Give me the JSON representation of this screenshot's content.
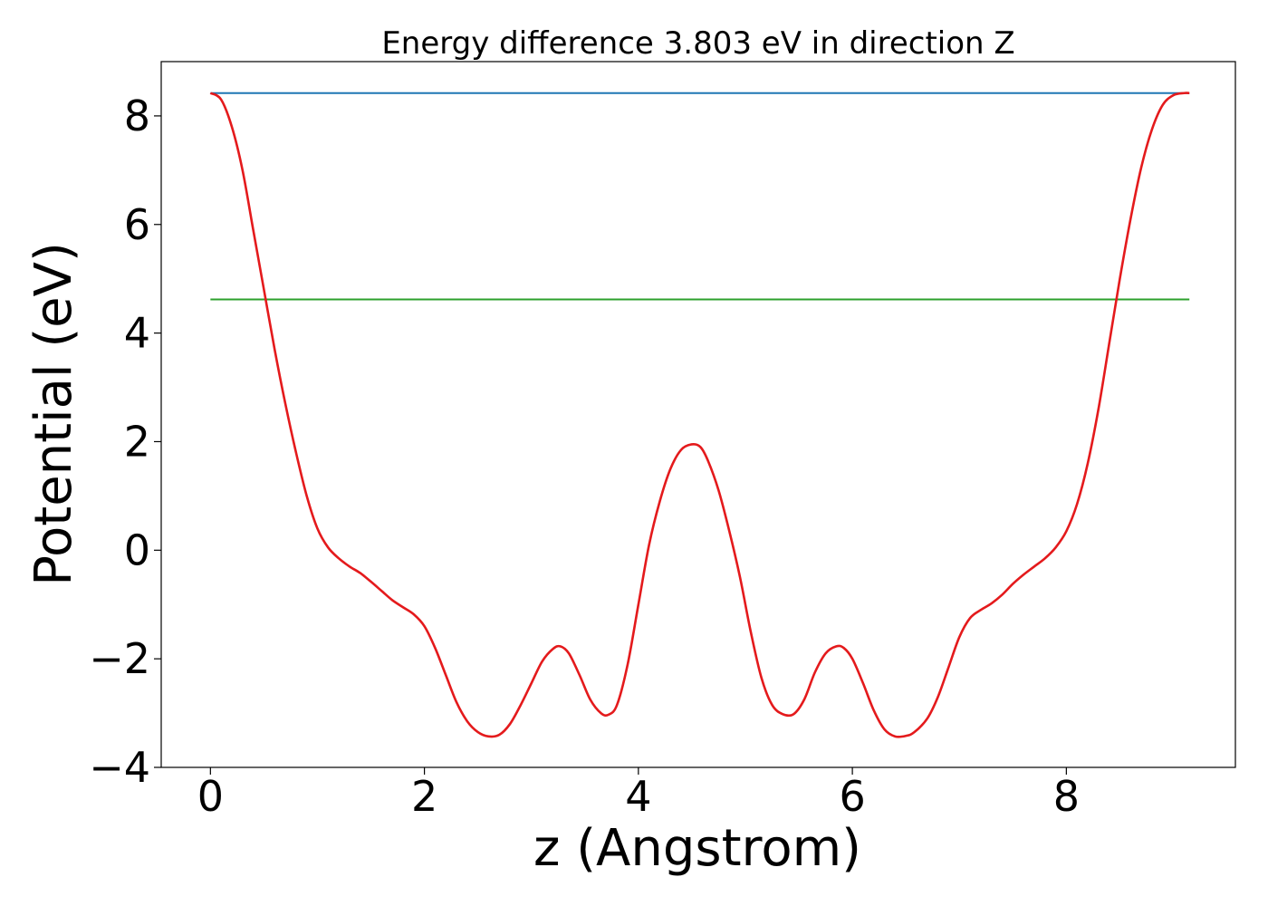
{
  "chart_data": {
    "type": "line",
    "title": "Energy difference 3.803 eV in direction Z",
    "xlabel": "z (Angstrom)",
    "ylabel": "Potential (eV)",
    "xlim": [
      -0.46,
      9.58
    ],
    "ylim": [
      -4.0,
      9.0
    ],
    "xticks": [
      0,
      2,
      4,
      6,
      8
    ],
    "xtick_labels": [
      "0",
      "2",
      "4",
      "6",
      "8"
    ],
    "yticks": [
      -4,
      -2,
      0,
      2,
      4,
      6,
      8
    ],
    "ytick_labels": [
      "−4",
      "−2",
      "0",
      "2",
      "4",
      "6",
      "8"
    ],
    "grid": false,
    "legend": "none",
    "series": [
      {
        "color": "#1f77b4",
        "x": [
          0,
          9.15
        ],
        "y": [
          8.42,
          8.42
        ]
      },
      {
        "color": "#2ca02c",
        "x": [
          0,
          9.15
        ],
        "y": [
          4.62,
          4.62
        ]
      },
      {
        "color": "#e41a1c",
        "x": [
          0.0,
          0.1,
          0.2,
          0.3,
          0.4,
          0.5,
          0.6,
          0.7,
          0.8,
          0.9,
          1.0,
          1.1,
          1.2,
          1.3,
          1.4,
          1.5,
          1.6,
          1.7,
          1.8,
          1.9,
          2.0,
          2.1,
          2.2,
          2.3,
          2.4,
          2.5,
          2.6,
          2.7,
          2.8,
          2.9,
          3.0,
          3.1,
          3.2,
          3.27,
          3.35,
          3.45,
          3.55,
          3.65,
          3.72,
          3.8,
          3.9,
          4.0,
          4.1,
          4.2,
          4.3,
          4.4,
          4.5,
          4.58,
          4.65,
          4.75,
          4.85,
          4.95,
          5.05,
          5.15,
          5.25,
          5.35,
          5.45,
          5.55,
          5.65,
          5.75,
          5.85,
          5.92,
          6.0,
          6.1,
          6.2,
          6.3,
          6.4,
          6.5,
          6.58,
          6.7,
          6.8,
          6.9,
          7.0,
          7.1,
          7.2,
          7.3,
          7.4,
          7.5,
          7.6,
          7.7,
          7.8,
          7.9,
          8.0,
          8.1,
          8.2,
          8.3,
          8.4,
          8.5,
          8.6,
          8.7,
          8.8,
          8.9,
          9.0,
          9.1,
          9.15
        ],
        "y": [
          8.42,
          8.3,
          7.8,
          7.0,
          5.9,
          4.8,
          3.7,
          2.7,
          1.8,
          1.0,
          0.4,
          0.05,
          -0.15,
          -0.3,
          -0.42,
          -0.58,
          -0.75,
          -0.92,
          -1.05,
          -1.18,
          -1.4,
          -1.8,
          -2.3,
          -2.8,
          -3.15,
          -3.35,
          -3.43,
          -3.4,
          -3.2,
          -2.85,
          -2.45,
          -2.05,
          -1.82,
          -1.77,
          -1.9,
          -2.3,
          -2.75,
          -3.0,
          -3.03,
          -2.85,
          -2.1,
          -1.0,
          0.1,
          0.9,
          1.5,
          1.85,
          1.95,
          1.9,
          1.65,
          1.1,
          0.35,
          -0.5,
          -1.5,
          -2.35,
          -2.85,
          -3.02,
          -3.02,
          -2.75,
          -2.25,
          -1.9,
          -1.77,
          -1.8,
          -2.0,
          -2.45,
          -2.95,
          -3.3,
          -3.43,
          -3.42,
          -3.35,
          -3.1,
          -2.7,
          -2.15,
          -1.6,
          -1.25,
          -1.1,
          -0.98,
          -0.82,
          -0.62,
          -0.45,
          -0.3,
          -0.15,
          0.05,
          0.35,
          0.85,
          1.6,
          2.6,
          3.8,
          5.0,
          6.1,
          7.05,
          7.75,
          8.2,
          8.38,
          8.42,
          8.42
        ]
      }
    ]
  }
}
